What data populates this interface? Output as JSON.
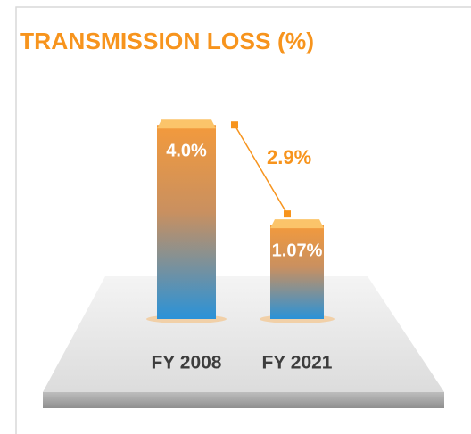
{
  "chart_data": {
    "type": "bar",
    "title": "TRANSMISSION LOSS (%)",
    "categories": [
      "FY 2008",
      "FY 2021"
    ],
    "values": [
      4.0,
      1.07
    ],
    "value_labels": [
      "4.0%",
      "1.07%"
    ],
    "annotation": "2.9%",
    "color": "#f7941d"
  }
}
